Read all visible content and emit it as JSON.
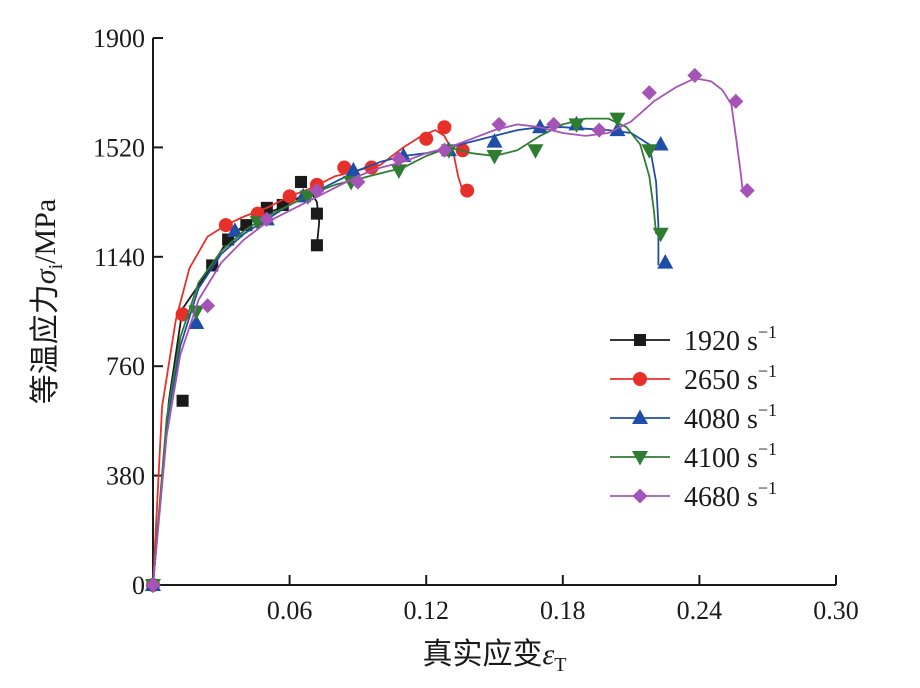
{
  "chart_data": {
    "type": "line",
    "xlabel": "真实应变",
    "xlabel_symbol": "ε",
    "xlabel_sub": "T",
    "ylabel": "等温应力",
    "ylabel_symbol": "σ",
    "ylabel_sub": "i",
    "ylabel_unit": "/MPa",
    "xlim": [
      0,
      0.3
    ],
    "ylim": [
      0,
      1900
    ],
    "xticks": [
      0.06,
      0.12,
      0.18,
      0.24,
      0.3
    ],
    "xtick_labels": [
      "0.06",
      "0.12",
      "0.18",
      "0.24",
      "0.30"
    ],
    "yticks": [
      0,
      380,
      760,
      1140,
      1520,
      1900
    ],
    "ytick_labels": [
      "0",
      "380",
      "760",
      "1140",
      "1520",
      "1900"
    ],
    "legend_position": "right-center",
    "grid": false,
    "series": [
      {
        "name": "1920 s",
        "name_sup": "−1",
        "color": "#1a1a1a",
        "marker": "square",
        "x": [
          0,
          0.007,
          0.013,
          0.026,
          0.033,
          0.04,
          0.048,
          0.056,
          0.065,
          0.069,
          0.072,
          0.073,
          0.072
        ],
        "y": [
          0,
          640,
          960,
          1110,
          1200,
          1250,
          1285,
          1310,
          1350,
          1370,
          1330,
          1260,
          1180
        ],
        "markers_x": [
          0,
          0.013,
          0.026,
          0.033,
          0.041,
          0.05,
          0.057,
          0.065,
          0.072,
          0.072
        ],
        "markers_y": [
          0,
          640,
          1110,
          1200,
          1250,
          1310,
          1320,
          1400,
          1290,
          1180
        ]
      },
      {
        "name": "2650 s",
        "name_sup": "−1",
        "color": "#e8302a",
        "marker": "circle",
        "x": [
          0,
          0.004,
          0.01,
          0.016,
          0.024,
          0.032,
          0.04,
          0.05,
          0.06,
          0.07,
          0.08,
          0.09,
          0.1,
          0.11,
          0.118,
          0.124,
          0.128,
          0.132,
          0.134,
          0.136
        ],
        "y": [
          0,
          620,
          920,
          1100,
          1210,
          1250,
          1280,
          1310,
          1350,
          1380,
          1420,
          1440,
          1460,
          1520,
          1560,
          1580,
          1560,
          1500,
          1420,
          1370
        ],
        "markers_x": [
          0,
          0.013,
          0.032,
          0.046,
          0.06,
          0.072,
          0.084,
          0.096,
          0.12,
          0.128,
          0.136,
          0.138
        ],
        "markers_y": [
          0,
          940,
          1250,
          1290,
          1350,
          1390,
          1450,
          1450,
          1550,
          1590,
          1510,
          1370
        ]
      },
      {
        "name": "4080 s",
        "name_sup": "−1",
        "color": "#1f4ea8",
        "marker": "triangle-up",
        "x": [
          0,
          0.006,
          0.012,
          0.02,
          0.03,
          0.04,
          0.05,
          0.06,
          0.07,
          0.08,
          0.09,
          0.1,
          0.11,
          0.12,
          0.13,
          0.14,
          0.15,
          0.16,
          0.17,
          0.18,
          0.19,
          0.2,
          0.21,
          0.218,
          0.221,
          0.222,
          0.222
        ],
        "y": [
          0,
          560,
          830,
          1030,
          1150,
          1220,
          1270,
          1320,
          1360,
          1400,
          1440,
          1470,
          1490,
          1500,
          1520,
          1540,
          1560,
          1580,
          1590,
          1590,
          1585,
          1580,
          1570,
          1530,
          1400,
          1250,
          1110
        ],
        "markers_x": [
          0,
          0.019,
          0.036,
          0.05,
          0.066,
          0.088,
          0.11,
          0.13,
          0.15,
          0.17,
          0.186,
          0.204,
          0.223,
          0.225
        ],
        "markers_y": [
          0,
          910,
          1230,
          1270,
          1350,
          1440,
          1490,
          1510,
          1540,
          1590,
          1600,
          1580,
          1530,
          1120
        ]
      },
      {
        "name": "4100 s",
        "name_sup": "−1",
        "color": "#2f7d32",
        "marker": "triangle-down",
        "x": [
          0,
          0.006,
          0.012,
          0.02,
          0.03,
          0.04,
          0.05,
          0.06,
          0.07,
          0.08,
          0.09,
          0.1,
          0.11,
          0.12,
          0.13,
          0.14,
          0.15,
          0.16,
          0.17,
          0.18,
          0.19,
          0.2,
          0.208,
          0.214,
          0.218,
          0.22,
          0.221
        ],
        "y": [
          0,
          580,
          860,
          1050,
          1160,
          1230,
          1280,
          1320,
          1360,
          1390,
          1410,
          1430,
          1450,
          1490,
          1520,
          1500,
          1490,
          1510,
          1560,
          1600,
          1620,
          1620,
          1590,
          1530,
          1420,
          1300,
          1220
        ],
        "markers_x": [
          0,
          0.019,
          0.046,
          0.068,
          0.087,
          0.108,
          0.13,
          0.15,
          0.168,
          0.186,
          0.204,
          0.218,
          0.223
        ],
        "markers_y": [
          0,
          950,
          1260,
          1350,
          1400,
          1440,
          1510,
          1490,
          1510,
          1600,
          1620,
          1510,
          1220
        ]
      },
      {
        "name": "4680 s",
        "name_sup": "−1",
        "color": "#a653b8",
        "marker": "diamond",
        "x": [
          0,
          0.006,
          0.012,
          0.02,
          0.03,
          0.04,
          0.05,
          0.06,
          0.07,
          0.08,
          0.09,
          0.1,
          0.11,
          0.12,
          0.13,
          0.14,
          0.15,
          0.16,
          0.17,
          0.18,
          0.19,
          0.2,
          0.21,
          0.22,
          0.23,
          0.238,
          0.245,
          0.25,
          0.254,
          0.256,
          0.258,
          0.259
        ],
        "y": [
          0,
          520,
          800,
          990,
          1120,
          1200,
          1260,
          1300,
          1340,
          1380,
          1420,
          1450,
          1470,
          1500,
          1520,
          1550,
          1580,
          1600,
          1590,
          1570,
          1560,
          1570,
          1610,
          1680,
          1730,
          1760,
          1750,
          1720,
          1670,
          1560,
          1440,
          1370
        ],
        "markers_x": [
          0,
          0.024,
          0.05,
          0.072,
          0.09,
          0.108,
          0.128,
          0.152,
          0.176,
          0.196,
          0.218,
          0.238,
          0.256,
          0.261
        ],
        "markers_y": [
          0,
          970,
          1270,
          1370,
          1400,
          1480,
          1510,
          1600,
          1600,
          1580,
          1710,
          1770,
          1680,
          1370
        ]
      }
    ]
  }
}
